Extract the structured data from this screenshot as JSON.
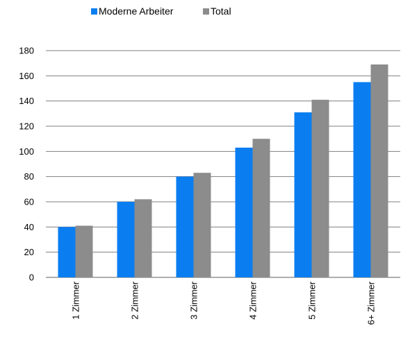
{
  "chart_data": {
    "type": "bar",
    "categories": [
      "1 Zimmer",
      "2 Zimmer",
      "3 Zimmer",
      "4 Zimmer",
      "5 Zimmer",
      "6+ Zimmer"
    ],
    "series": [
      {
        "name": "Moderne Arbeiter",
        "color": "#0a7ef0",
        "values": [
          40,
          60,
          80,
          103,
          131,
          155
        ]
      },
      {
        "name": "Total",
        "color": "#8c8c8c",
        "values": [
          41,
          62,
          83,
          110,
          141,
          169
        ]
      }
    ],
    "yticks": [
      "0",
      "20",
      "40",
      "60",
      "80",
      "100",
      "120",
      "140",
      "160",
      "180"
    ],
    "ylim": [
      0,
      180
    ],
    "grid": true,
    "legend_position": "top",
    "gridline_color": "#7f7f7f"
  }
}
